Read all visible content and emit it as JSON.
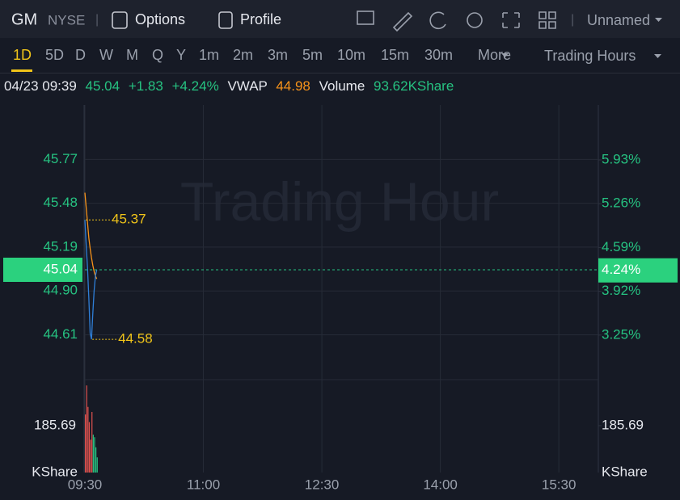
{
  "header": {
    "symbol": "GM",
    "exchange": "NYSE",
    "tabs": [
      "Options",
      "Profile"
    ],
    "layout_name": "Unnamed"
  },
  "timeframes": [
    "1D",
    "5D",
    "D",
    "W",
    "M",
    "Q",
    "Y",
    "1m",
    "2m",
    "3m",
    "5m",
    "10m",
    "15m",
    "30m"
  ],
  "more": "More",
  "session": "Trading Hours",
  "quote": {
    "datetime": "04/23 09:39",
    "price": "45.04",
    "change": "+1.83",
    "change_pct": "+4.24%",
    "vwap_label": "VWAP",
    "vwap": "44.98",
    "volume_label": "Volume",
    "volume": "93.62KShare"
  },
  "chart_data": {
    "type": "line",
    "watermark": "Trading Hour",
    "x": [
      0,
      1,
      2,
      3,
      4,
      5,
      6,
      7,
      8,
      9
    ],
    "xlim": [
      0,
      390
    ],
    "xticks": [
      {
        "value": 0,
        "label": "09:30"
      },
      {
        "value": 90,
        "label": "11:00"
      },
      {
        "value": 180,
        "label": "12:30"
      },
      {
        "value": 270,
        "label": "14:00"
      },
      {
        "value": 360,
        "label": "15:30"
      }
    ],
    "series": [
      {
        "name": "VWAP",
        "color": "#f7931a",
        "values": [
          45.55,
          45.45,
          45.35,
          45.25,
          45.18,
          45.12,
          45.07,
          45.03,
          45.0,
          44.98
        ]
      },
      {
        "name": "Price",
        "color": "#2f7fd8",
        "values": [
          45.37,
          45.2,
          45.05,
          44.85,
          44.62,
          44.58,
          44.75,
          44.9,
          45.0,
          45.04
        ]
      }
    ],
    "ylim": [
      44.34,
      46.13
    ],
    "yticks": [
      45.77,
      45.48,
      45.19,
      {
        "value": 44.9,
        "label": "44.90"
      },
      44.61
    ],
    "y2lim": [
      2.63,
      6.77
    ],
    "y2ticks": [
      {
        "value": 5.93,
        "label": "5.93%"
      },
      {
        "value": 5.26,
        "label": "5.26%"
      },
      {
        "value": 4.59,
        "label": "4.59%"
      },
      {
        "value": 3.92,
        "label": "3.92%"
      },
      {
        "value": 3.25,
        "label": "3.25%"
      }
    ],
    "last": {
      "value": 45.04,
      "label": "45.04",
      "pct": {
        "value": 4.24,
        "label": "4.24%"
      }
    },
    "high": {
      "x": 0,
      "value": 45.37
    },
    "low": {
      "x": 5,
      "value": 44.58
    },
    "volume": {
      "values": [
        230,
        345,
        260,
        200,
        130,
        240,
        150,
        140,
        100,
        60
      ],
      "colors": [
        "#e0524f",
        "#e0524f",
        "#e0524f",
        "#e0524f",
        "#e0524f",
        "#e0524f",
        "#26c281",
        "#26c281",
        "#26c281",
        "#26c281"
      ],
      "ylim": [
        0,
        368
      ],
      "yticks": [
        185.69
      ],
      "unit": "KShare"
    }
  }
}
